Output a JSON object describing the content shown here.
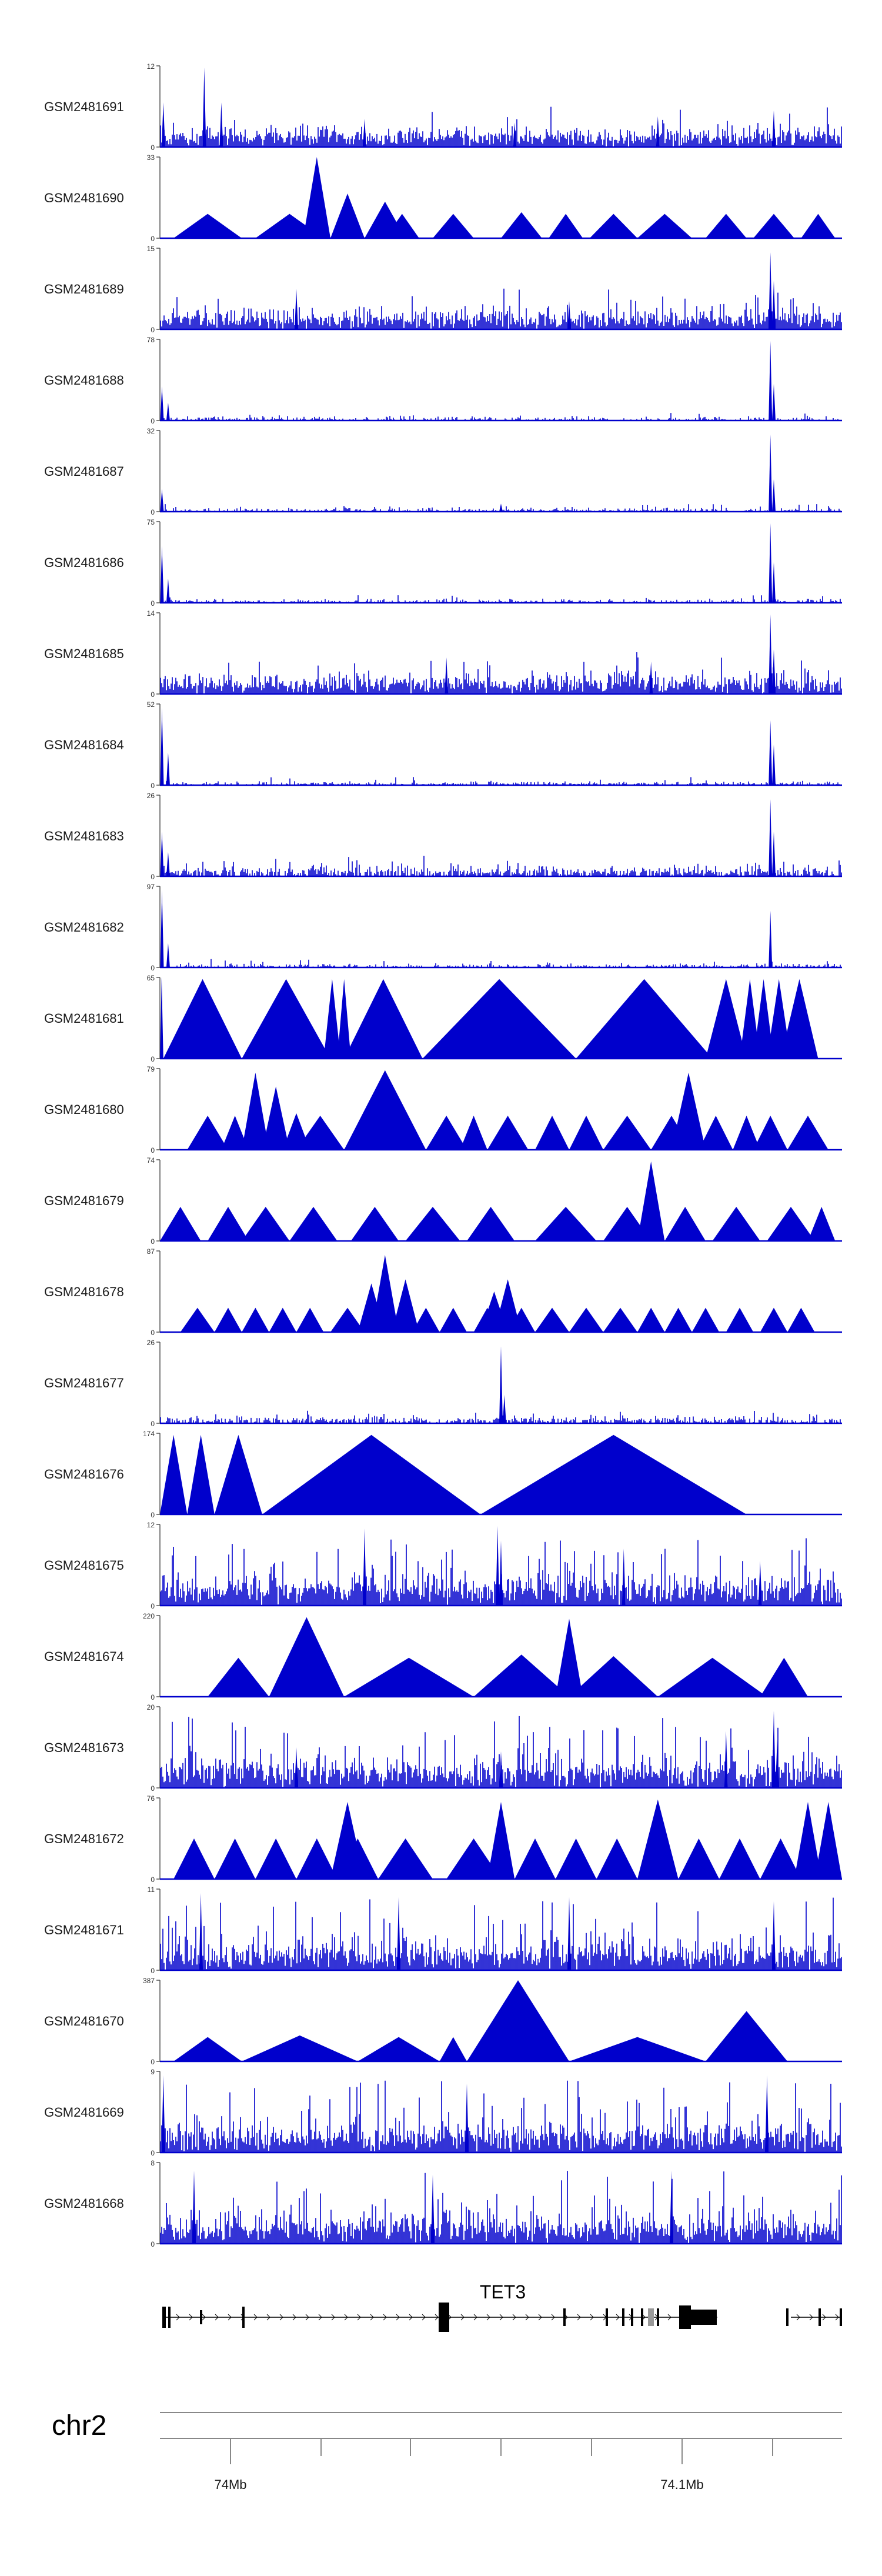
{
  "chart_data": {
    "type": "area",
    "title": "",
    "color": "#0000cc",
    "tracks": [
      {
        "name": "GSM2481691",
        "ymax": "12",
        "ymin": "0",
        "pattern": "dense",
        "peaks": [
          [
            0.005,
            0.55
          ],
          [
            0.065,
            0.98
          ],
          [
            0.09,
            0.55
          ],
          [
            0.3,
            0.35
          ],
          [
            0.52,
            0.3
          ],
          [
            0.73,
            0.38
          ],
          [
            0.9,
            0.45
          ]
        ]
      },
      {
        "name": "GSM2481690",
        "ymax": "33",
        "ymin": "0",
        "pattern": "triangles",
        "tri": [
          [
            0.02,
            0.12,
            0.3
          ],
          [
            0.14,
            0.24,
            0.3
          ],
          [
            0.21,
            0.25,
            1.0
          ],
          [
            0.25,
            0.3,
            0.55
          ],
          [
            0.3,
            0.36,
            0.45
          ],
          [
            0.33,
            0.38,
            0.3
          ],
          [
            0.4,
            0.46,
            0.3
          ],
          [
            0.5,
            0.56,
            0.32
          ],
          [
            0.57,
            0.62,
            0.3
          ],
          [
            0.63,
            0.7,
            0.3
          ],
          [
            0.7,
            0.78,
            0.3
          ],
          [
            0.8,
            0.86,
            0.3
          ],
          [
            0.87,
            0.93,
            0.3
          ],
          [
            0.94,
            0.99,
            0.3
          ]
        ]
      },
      {
        "name": "GSM2481689",
        "ymax": "15",
        "ymin": "0",
        "pattern": "dense",
        "peaks": [
          [
            0.2,
            0.5
          ],
          [
            0.6,
            0.35
          ],
          [
            0.895,
            0.95
          ],
          [
            0.9,
            0.6
          ]
        ]
      },
      {
        "name": "GSM2481688",
        "ymax": "78",
        "ymin": "0",
        "pattern": "sparse",
        "peaks": [
          [
            0.003,
            0.42
          ],
          [
            0.012,
            0.22
          ],
          [
            0.895,
            0.98
          ],
          [
            0.9,
            0.45
          ]
        ]
      },
      {
        "name": "GSM2481687",
        "ymax": "32",
        "ymin": "0",
        "pattern": "sparse",
        "peaks": [
          [
            0.003,
            0.28
          ],
          [
            0.5,
            0.1
          ],
          [
            0.895,
            0.95
          ],
          [
            0.9,
            0.4
          ]
        ]
      },
      {
        "name": "GSM2481686",
        "ymax": "75",
        "ymin": "0",
        "pattern": "sparse",
        "peaks": [
          [
            0.003,
            0.7
          ],
          [
            0.012,
            0.3
          ],
          [
            0.895,
            0.98
          ],
          [
            0.9,
            0.5
          ]
        ]
      },
      {
        "name": "GSM2481685",
        "ymax": "14",
        "ymin": "0",
        "pattern": "dense",
        "peaks": [
          [
            0.42,
            0.45
          ],
          [
            0.72,
            0.4
          ],
          [
            0.895,
            0.98
          ],
          [
            0.9,
            0.55
          ]
        ]
      },
      {
        "name": "GSM2481684",
        "ymax": "52",
        "ymin": "0",
        "pattern": "sparse",
        "peaks": [
          [
            0.003,
            0.95
          ],
          [
            0.012,
            0.4
          ],
          [
            0.895,
            0.8
          ],
          [
            0.9,
            0.5
          ]
        ]
      },
      {
        "name": "GSM2481683",
        "ymax": "26",
        "ymin": "0",
        "pattern": "mid",
        "peaks": [
          [
            0.003,
            0.55
          ],
          [
            0.012,
            0.3
          ],
          [
            0.895,
            0.95
          ],
          [
            0.9,
            0.55
          ]
        ]
      },
      {
        "name": "GSM2481682",
        "ymax": "97",
        "ymin": "0",
        "pattern": "sparse",
        "peaks": [
          [
            0.003,
            0.95
          ],
          [
            0.012,
            0.3
          ],
          [
            0.895,
            0.7
          ]
        ]
      },
      {
        "name": "GSM2481681",
        "ymax": "65",
        "ymin": "0",
        "pattern": "triangles",
        "tri": [
          [
            0.0,
            0.005,
            1.0
          ],
          [
            0.005,
            0.12,
            0.98
          ],
          [
            0.12,
            0.25,
            0.98
          ],
          [
            0.24,
            0.265,
            0.98
          ],
          [
            0.26,
            0.28,
            0.98
          ],
          [
            0.27,
            0.385,
            0.98
          ],
          [
            0.385,
            0.61,
            0.98
          ],
          [
            0.61,
            0.81,
            0.98
          ],
          [
            0.8,
            0.86,
            0.98
          ],
          [
            0.85,
            0.88,
            0.98
          ],
          [
            0.87,
            0.9,
            0.98
          ],
          [
            0.89,
            0.925,
            0.98
          ],
          [
            0.91,
            0.965,
            0.98
          ]
        ]
      },
      {
        "name": "GSM2481680",
        "ymax": "79",
        "ymin": "0",
        "pattern": "triangles",
        "tri": [
          [
            0.04,
            0.1,
            0.42
          ],
          [
            0.09,
            0.13,
            0.42
          ],
          [
            0.12,
            0.16,
            0.95
          ],
          [
            0.15,
            0.19,
            0.78
          ],
          [
            0.18,
            0.22,
            0.45
          ],
          [
            0.2,
            0.27,
            0.42
          ],
          [
            0.27,
            0.39,
            0.98
          ],
          [
            0.39,
            0.45,
            0.42
          ],
          [
            0.44,
            0.48,
            0.42
          ],
          [
            0.48,
            0.54,
            0.42
          ],
          [
            0.55,
            0.6,
            0.42
          ],
          [
            0.6,
            0.65,
            0.42
          ],
          [
            0.65,
            0.72,
            0.42
          ],
          [
            0.72,
            0.78,
            0.42
          ],
          [
            0.75,
            0.8,
            0.95
          ],
          [
            0.79,
            0.84,
            0.42
          ],
          [
            0.84,
            0.88,
            0.42
          ],
          [
            0.87,
            0.92,
            0.42
          ],
          [
            0.92,
            0.98,
            0.42
          ]
        ]
      },
      {
        "name": "GSM2481679",
        "ymax": "74",
        "ymin": "0",
        "pattern": "triangles",
        "tri": [
          [
            0.0,
            0.06,
            0.42
          ],
          [
            0.07,
            0.13,
            0.42
          ],
          [
            0.12,
            0.19,
            0.42
          ],
          [
            0.19,
            0.26,
            0.42
          ],
          [
            0.28,
            0.35,
            0.42
          ],
          [
            0.36,
            0.44,
            0.42
          ],
          [
            0.45,
            0.52,
            0.42
          ],
          [
            0.55,
            0.64,
            0.42
          ],
          [
            0.65,
            0.72,
            0.42
          ],
          [
            0.7,
            0.74,
            0.98
          ],
          [
            0.74,
            0.8,
            0.42
          ],
          [
            0.81,
            0.88,
            0.42
          ],
          [
            0.89,
            0.96,
            0.42
          ],
          [
            0.95,
            0.99,
            0.42
          ]
        ]
      },
      {
        "name": "GSM2481678",
        "ymax": "87",
        "ymin": "0",
        "pattern": "triangles",
        "tri": [
          [
            0.03,
            0.08,
            0.3
          ],
          [
            0.08,
            0.12,
            0.3
          ],
          [
            0.12,
            0.16,
            0.3
          ],
          [
            0.16,
            0.2,
            0.3
          ],
          [
            0.2,
            0.24,
            0.3
          ],
          [
            0.25,
            0.3,
            0.3
          ],
          [
            0.29,
            0.33,
            0.6
          ],
          [
            0.31,
            0.35,
            0.95
          ],
          [
            0.34,
            0.38,
            0.65
          ],
          [
            0.37,
            0.41,
            0.3
          ],
          [
            0.41,
            0.45,
            0.3
          ],
          [
            0.46,
            0.5,
            0.3
          ],
          [
            0.47,
            0.51,
            0.5
          ],
          [
            0.49,
            0.53,
            0.65
          ],
          [
            0.51,
            0.55,
            0.3
          ],
          [
            0.55,
            0.6,
            0.3
          ],
          [
            0.6,
            0.65,
            0.3
          ],
          [
            0.65,
            0.7,
            0.3
          ],
          [
            0.7,
            0.74,
            0.3
          ],
          [
            0.74,
            0.78,
            0.3
          ],
          [
            0.78,
            0.82,
            0.3
          ],
          [
            0.83,
            0.87,
            0.3
          ],
          [
            0.88,
            0.92,
            0.3
          ],
          [
            0.92,
            0.96,
            0.3
          ]
        ]
      },
      {
        "name": "GSM2481677",
        "ymax": "26",
        "ymin": "0",
        "pattern": "low",
        "peaks": [
          [
            0.5,
            0.95
          ],
          [
            0.505,
            0.35
          ]
        ]
      },
      {
        "name": "GSM2481676",
        "ymax": "174",
        "ymin": "0",
        "pattern": "triangles",
        "tri": [
          [
            0.0,
            0.04,
            0.98
          ],
          [
            0.04,
            0.08,
            0.98
          ],
          [
            0.08,
            0.15,
            0.98
          ],
          [
            0.15,
            0.47,
            0.98
          ],
          [
            0.47,
            0.86,
            0.98
          ]
        ]
      },
      {
        "name": "GSM2481675",
        "ymax": "12",
        "ymin": "0",
        "pattern": "spiky",
        "peaks": [
          [
            0.3,
            0.95
          ],
          [
            0.495,
            0.98
          ],
          [
            0.5,
            0.8
          ],
          [
            0.68,
            0.7
          ],
          [
            0.88,
            0.55
          ]
        ]
      },
      {
        "name": "GSM2481674",
        "ymax": "220",
        "ymin": "0",
        "pattern": "triangles",
        "tri": [
          [
            0.07,
            0.16,
            0.48
          ],
          [
            0.16,
            0.27,
            0.98
          ],
          [
            0.27,
            0.46,
            0.48
          ],
          [
            0.46,
            0.6,
            0.52
          ],
          [
            0.58,
            0.62,
            0.96
          ],
          [
            0.6,
            0.73,
            0.5
          ],
          [
            0.73,
            0.89,
            0.48
          ],
          [
            0.88,
            0.95,
            0.48
          ]
        ]
      },
      {
        "name": "GSM2481673",
        "ymax": "20",
        "ymin": "0",
        "pattern": "spiky",
        "peaks": [
          [
            0.2,
            0.5
          ],
          [
            0.5,
            0.45
          ],
          [
            0.83,
            0.7
          ],
          [
            0.9,
            0.95
          ],
          [
            0.905,
            0.6
          ]
        ]
      },
      {
        "name": "GSM2481672",
        "ymax": "76",
        "ymin": "0",
        "pattern": "triangles",
        "tri": [
          [
            0.02,
            0.08,
            0.5
          ],
          [
            0.08,
            0.14,
            0.5
          ],
          [
            0.14,
            0.2,
            0.5
          ],
          [
            0.2,
            0.26,
            0.5
          ],
          [
            0.25,
            0.3,
            0.95
          ],
          [
            0.26,
            0.32,
            0.5
          ],
          [
            0.32,
            0.4,
            0.5
          ],
          [
            0.42,
            0.5,
            0.5
          ],
          [
            0.48,
            0.52,
            0.95
          ],
          [
            0.52,
            0.58,
            0.5
          ],
          [
            0.58,
            0.64,
            0.5
          ],
          [
            0.64,
            0.7,
            0.5
          ],
          [
            0.7,
            0.76,
            0.98
          ],
          [
            0.76,
            0.82,
            0.5
          ],
          [
            0.82,
            0.88,
            0.5
          ],
          [
            0.88,
            0.94,
            0.5
          ],
          [
            0.93,
            0.97,
            0.95
          ],
          [
            0.96,
            1.0,
            0.95
          ]
        ]
      },
      {
        "name": "GSM2481671",
        "ymax": "11",
        "ymin": "0",
        "pattern": "spiky",
        "peaks": [
          [
            0.06,
            0.95
          ],
          [
            0.35,
            0.9
          ],
          [
            0.6,
            0.9
          ],
          [
            0.9,
            0.85
          ]
        ]
      },
      {
        "name": "GSM2481670",
        "ymax": "387",
        "ymin": "0",
        "pattern": "triangles",
        "tri": [
          [
            0.02,
            0.12,
            0.3
          ],
          [
            0.12,
            0.29,
            0.32
          ],
          [
            0.29,
            0.41,
            0.3
          ],
          [
            0.41,
            0.45,
            0.3
          ],
          [
            0.45,
            0.6,
            1.0
          ],
          [
            0.6,
            0.8,
            0.3
          ],
          [
            0.8,
            0.92,
            0.62
          ]
        ]
      },
      {
        "name": "GSM2481669",
        "ymax": "9",
        "ymin": "0",
        "pattern": "spiky",
        "peaks": [
          [
            0.005,
            0.95
          ],
          [
            0.45,
            0.85
          ],
          [
            0.89,
            0.95
          ]
        ]
      },
      {
        "name": "GSM2481668",
        "ymax": "8",
        "ymin": "0",
        "pattern": "spiky",
        "peaks": [
          [
            0.05,
            0.9
          ],
          [
            0.4,
            0.85
          ],
          [
            0.75,
            0.9
          ]
        ]
      }
    ],
    "gene": {
      "name": "TET3",
      "strand": "+"
    },
    "chromosome": "chr2",
    "x_ticks": [
      "74Mb",
      "74.1Mb"
    ]
  }
}
